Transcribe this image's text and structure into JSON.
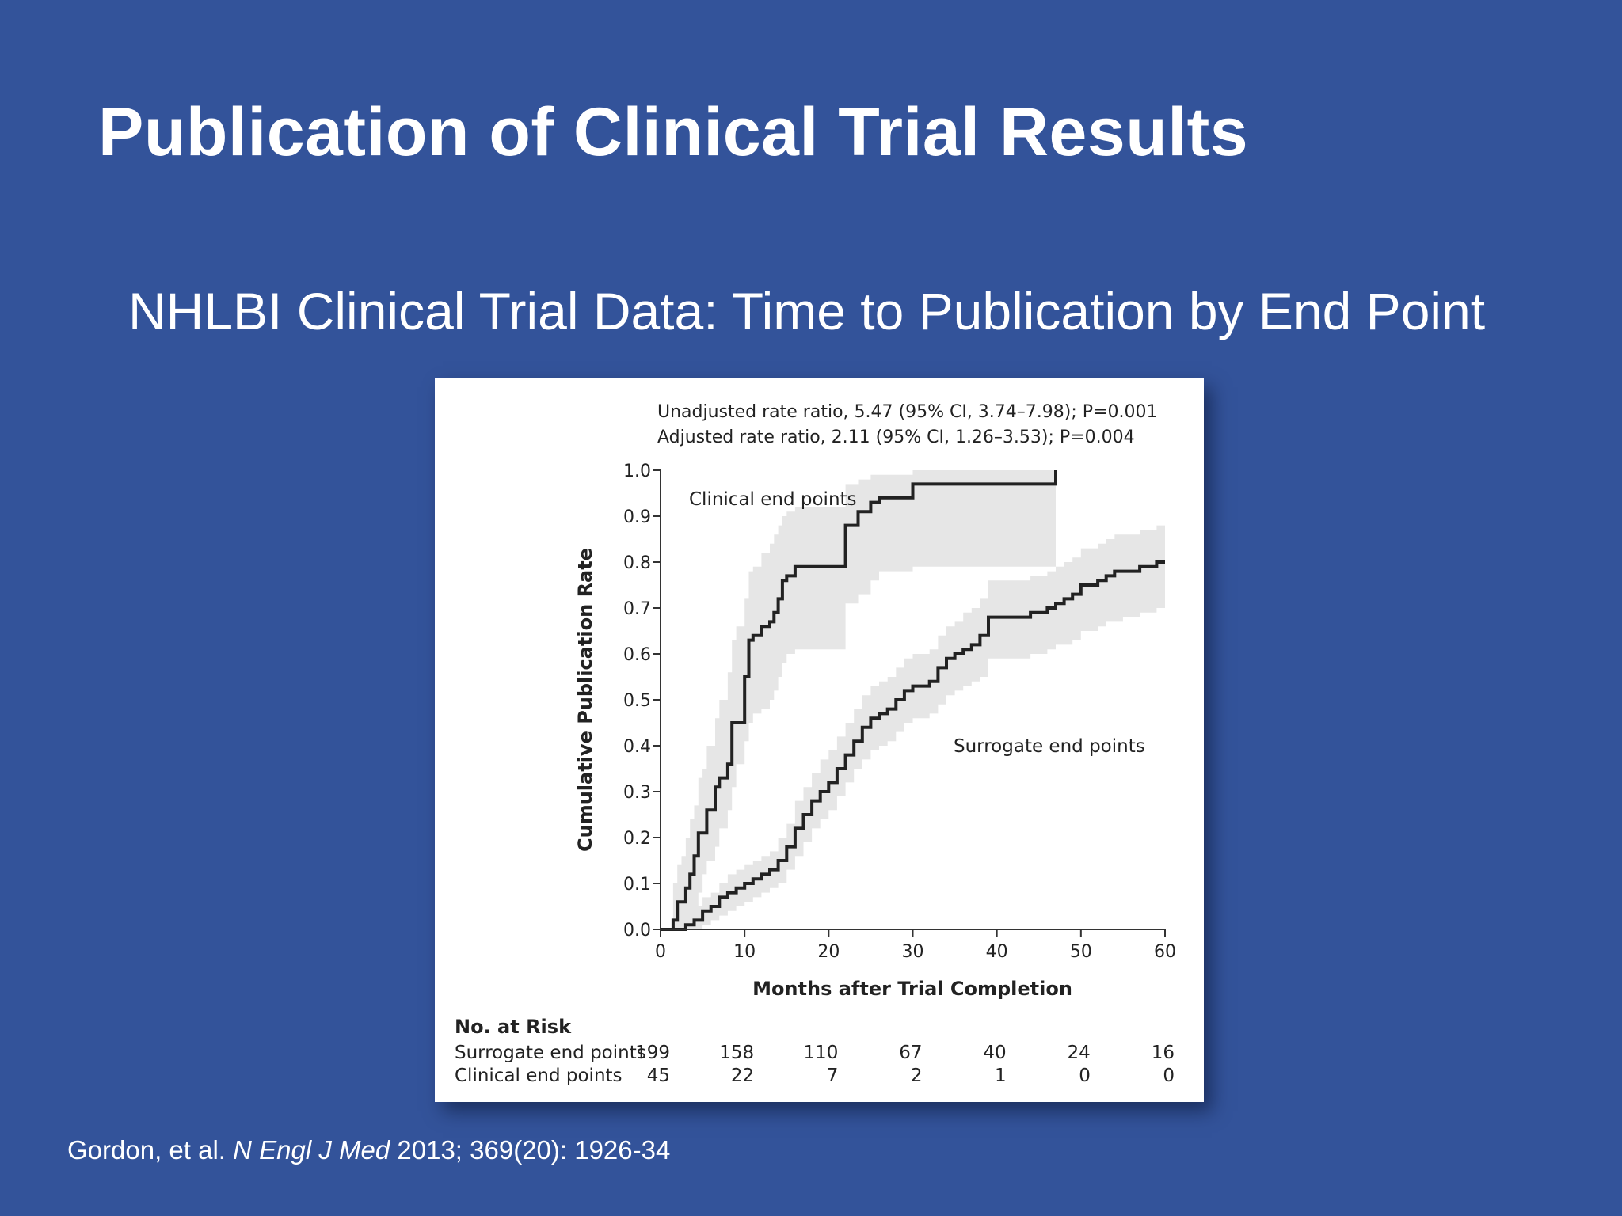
{
  "slide": {
    "title": "Publication of Clinical Trial Results",
    "subtitle": "NHLBI Clinical Trial Data: Time to Publication by End Point"
  },
  "citation": {
    "authors": "Gordon, et al.",
    "journal": "N Engl J Med",
    "details": "2013; 369(20): 1926-34"
  },
  "colors": {
    "background": "#33539a",
    "title_text": "#ffffff",
    "curve": "#222222",
    "confidence_band": "#e6e6e6",
    "panel": "#ffffff"
  },
  "chart_data": {
    "type": "line",
    "annotations": [
      "Unadjusted rate ratio, 5.47 (95% CI, 3.74–7.98); P=0.001",
      "Adjusted rate ratio, 2.11 (95% CI, 1.26–3.53); P=0.004"
    ],
    "xlabel": "Months after Trial Completion",
    "ylabel": "Cumulative Publication Rate",
    "xlim": [
      0,
      60
    ],
    "ylim": [
      0,
      1.0
    ],
    "xticks": [
      "0",
      "10",
      "20",
      "30",
      "40",
      "50",
      "60"
    ],
    "yticks": [
      "0.0",
      "0.1",
      "0.2",
      "0.3",
      "0.4",
      "0.5",
      "0.6",
      "0.7",
      "0.8",
      "0.9",
      "1.0"
    ],
    "grid": false,
    "series": [
      {
        "name": "Clinical end points",
        "step": true,
        "x": [
          0,
          1.5,
          2,
          2.5,
          3,
          3.5,
          4,
          4.5,
          5,
          5.5,
          6.5,
          7,
          8,
          8.5,
          9,
          10,
          10.5,
          11,
          12,
          13,
          13.5,
          14,
          14.5,
          15,
          16,
          16.5,
          17,
          20,
          22,
          23.5,
          25,
          26,
          30,
          33,
          47,
          47
        ],
        "y": [
          0,
          0.02,
          0.06,
          0.06,
          0.09,
          0.12,
          0.16,
          0.21,
          0.21,
          0.26,
          0.31,
          0.33,
          0.36,
          0.45,
          0.45,
          0.55,
          0.63,
          0.64,
          0.66,
          0.67,
          0.69,
          0.72,
          0.76,
          0.77,
          0.79,
          0.79,
          0.79,
          0.79,
          0.88,
          0.91,
          0.93,
          0.94,
          0.97,
          0.97,
          0.97,
          1.0
        ],
        "ci_lower": [
          0,
          0,
          0,
          0,
          0,
          0.02,
          0.04,
          0.08,
          0.12,
          0.15,
          0.18,
          0.22,
          0.26,
          0.31,
          0.36,
          0.41,
          0.45,
          0.47,
          0.48,
          0.5,
          0.52,
          0.55,
          0.58,
          0.6,
          0.61,
          0.61,
          0.61,
          0.61,
          0.71,
          0.73,
          0.76,
          0.78,
          0.79,
          0.79,
          0.79,
          0.79
        ],
        "ci_upper": [
          0,
          0.1,
          0.14,
          0.16,
          0.2,
          0.24,
          0.27,
          0.33,
          0.35,
          0.4,
          0.46,
          0.5,
          0.56,
          0.63,
          0.66,
          0.72,
          0.78,
          0.79,
          0.82,
          0.84,
          0.86,
          0.88,
          0.9,
          0.91,
          0.92,
          0.92,
          0.92,
          0.92,
          0.97,
          0.98,
          0.99,
          0.99,
          1.0,
          1.0,
          1.0,
          1.0
        ]
      },
      {
        "name": "Surrogate end points",
        "step": true,
        "x": [
          0,
          3,
          4,
          5,
          6,
          7,
          8,
          9,
          10,
          11,
          12,
          13,
          14,
          15,
          16,
          17,
          18,
          19,
          20,
          21,
          22,
          23,
          24,
          25,
          26,
          27,
          28,
          29,
          30,
          31,
          32,
          33,
          34,
          35,
          36,
          37,
          38,
          39,
          40,
          41,
          42,
          43,
          44,
          45,
          46,
          47,
          48,
          49,
          50,
          51,
          52,
          53,
          54,
          55,
          56,
          57,
          58,
          59,
          60
        ],
        "y": [
          0,
          0.01,
          0.02,
          0.04,
          0.05,
          0.07,
          0.08,
          0.09,
          0.1,
          0.11,
          0.12,
          0.13,
          0.15,
          0.18,
          0.22,
          0.25,
          0.28,
          0.3,
          0.32,
          0.35,
          0.38,
          0.41,
          0.44,
          0.46,
          0.47,
          0.48,
          0.5,
          0.52,
          0.53,
          0.53,
          0.54,
          0.57,
          0.59,
          0.6,
          0.61,
          0.62,
          0.64,
          0.68,
          0.68,
          0.68,
          0.68,
          0.68,
          0.69,
          0.69,
          0.7,
          0.71,
          0.72,
          0.73,
          0.75,
          0.75,
          0.76,
          0.77,
          0.78,
          0.78,
          0.78,
          0.79,
          0.79,
          0.8,
          0.8
        ],
        "ci_lower": [
          0,
          0,
          0,
          0.01,
          0.02,
          0.03,
          0.04,
          0.05,
          0.06,
          0.07,
          0.08,
          0.09,
          0.1,
          0.13,
          0.16,
          0.19,
          0.22,
          0.24,
          0.26,
          0.29,
          0.32,
          0.35,
          0.37,
          0.39,
          0.4,
          0.41,
          0.43,
          0.45,
          0.46,
          0.46,
          0.47,
          0.49,
          0.51,
          0.52,
          0.53,
          0.54,
          0.55,
          0.59,
          0.59,
          0.59,
          0.59,
          0.59,
          0.6,
          0.6,
          0.61,
          0.62,
          0.62,
          0.63,
          0.65,
          0.65,
          0.66,
          0.67,
          0.67,
          0.68,
          0.68,
          0.69,
          0.69,
          0.7,
          0.7
        ],
        "ci_upper": [
          0,
          0.03,
          0.05,
          0.07,
          0.08,
          0.1,
          0.12,
          0.13,
          0.14,
          0.15,
          0.16,
          0.17,
          0.2,
          0.23,
          0.28,
          0.31,
          0.34,
          0.37,
          0.39,
          0.42,
          0.45,
          0.48,
          0.51,
          0.53,
          0.54,
          0.55,
          0.57,
          0.59,
          0.6,
          0.6,
          0.61,
          0.64,
          0.66,
          0.67,
          0.69,
          0.7,
          0.72,
          0.76,
          0.76,
          0.76,
          0.76,
          0.76,
          0.77,
          0.77,
          0.78,
          0.79,
          0.8,
          0.81,
          0.83,
          0.83,
          0.84,
          0.85,
          0.86,
          0.86,
          0.86,
          0.87,
          0.87,
          0.88,
          0.88
        ]
      }
    ],
    "risk_table": {
      "title": "No. at Risk",
      "columns": [
        0,
        10,
        20,
        30,
        40,
        50,
        60
      ],
      "rows": [
        {
          "label": "Surrogate end points",
          "values": [
            "199",
            "158",
            "110",
            "67",
            "40",
            "24",
            "16"
          ]
        },
        {
          "label": "Clinical end points",
          "values": [
            "45",
            "22",
            "7",
            "2",
            "1",
            "0",
            "0"
          ]
        }
      ]
    }
  }
}
